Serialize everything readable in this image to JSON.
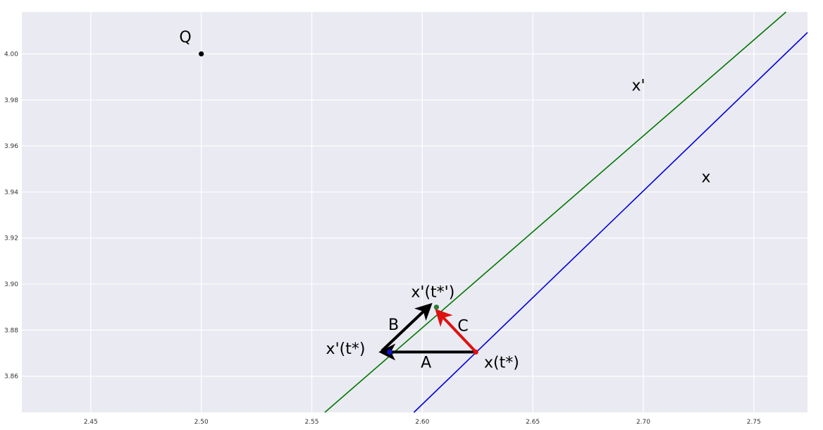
{
  "chart_data": {
    "type": "line",
    "title": "",
    "xlabel": "",
    "ylabel": "",
    "xlim": [
      2.4188,
      2.7743
    ],
    "ylim": [
      3.8443,
      4.0182
    ],
    "grid": true,
    "x_ticks": [
      "2.45",
      "2.50",
      "2.55",
      "2.60",
      "2.65",
      "2.70",
      "2.75"
    ],
    "y_ticks": [
      "3.86",
      "3.88",
      "3.90",
      "3.92",
      "3.94",
      "3.96",
      "3.98",
      "4.00"
    ],
    "colors": {
      "background": "#eaeaf2",
      "grid": "#ffffff",
      "line_x": "#0000dd",
      "line_x_prime": "#007700",
      "arrow_black": "#000000",
      "arrow_red": "#dd1111",
      "point_q": "#000000",
      "point_blue": "#1111dd",
      "point_red": "#dd1111"
    },
    "lines": [
      {
        "label": "x",
        "color": "#0000dd",
        "points": [
          [
            2.5962,
            3.8443
          ],
          [
            2.7743,
            4.0093
          ]
        ]
      },
      {
        "label": "x'",
        "color": "#007700",
        "points": [
          [
            2.5559,
            3.8443
          ],
          [
            2.7646,
            4.0182
          ]
        ]
      }
    ],
    "points": [
      {
        "label": "Q",
        "x": 2.5,
        "y": 4.0,
        "color": "#000000"
      },
      {
        "label": "x(t*)",
        "x": 2.6242,
        "y": 3.8705,
        "color": "#dd1111"
      },
      {
        "label": "x'(t*)",
        "x": 2.5852,
        "y": 3.8705,
        "color": "#1111dd"
      },
      {
        "label": "x'(t*')",
        "x": 2.6064,
        "y": 3.89,
        "color": "#2e7d32"
      }
    ],
    "arrows": [
      {
        "label": "A",
        "from": [
          2.6233,
          3.8705
        ],
        "to": [
          2.5825,
          3.8705
        ],
        "color": "#000000"
      },
      {
        "label": "B",
        "from": [
          2.5819,
          3.8712
        ],
        "to": [
          2.6029,
          3.8903
        ],
        "color": "#000000"
      },
      {
        "label": "C",
        "from": [
          2.6239,
          3.8709
        ],
        "to": [
          2.6073,
          3.8877
        ],
        "color": "#dd1111"
      }
    ],
    "annotations": [
      {
        "text": "Q",
        "x": 2.4928,
        "y": 4.005,
        "color": "#000000"
      },
      {
        "text": "x'",
        "x": 2.6978,
        "y": 3.984,
        "color": "#000000"
      },
      {
        "text": "x",
        "x": 2.7284,
        "y": 3.9443,
        "color": "#000000"
      },
      {
        "text": "x'(t*')",
        "x": 2.6048,
        "y": 3.8944,
        "color": "#000000"
      },
      {
        "text": "B",
        "x": 2.587,
        "y": 3.8801,
        "color": "#000000"
      },
      {
        "text": "C",
        "x": 2.6184,
        "y": 3.8797,
        "color": "#dd1111"
      },
      {
        "text": "A",
        "x": 2.6017,
        "y": 3.8638,
        "color": "#000000"
      },
      {
        "text": "x'(t*)",
        "x": 2.5653,
        "y": 3.8697,
        "color": "#000000"
      },
      {
        "text": "x(t*)",
        "x": 2.6359,
        "y": 3.8638,
        "color": "#000000"
      }
    ]
  }
}
